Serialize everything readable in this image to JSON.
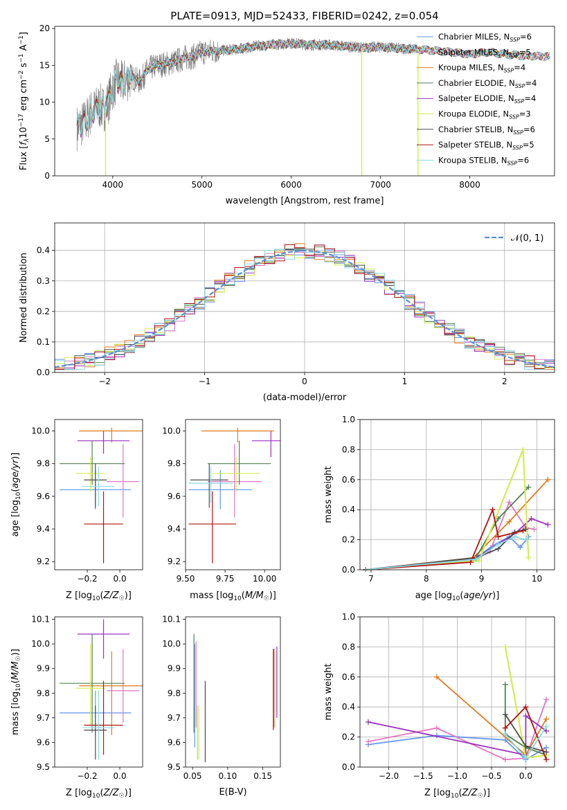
{
  "figure": {
    "title": "PLATE=0913, MJD=52433, FIBERID=0242, z=0.054"
  },
  "colors": {
    "observed": "#808080",
    "model": [
      "#6495ed",
      "#e377c2",
      "#e07b20",
      "#4f7f4f",
      "#9b30c0",
      "#d4ec50",
      "#4a4a4a",
      "#b01010",
      "#8ad8e0"
    ]
  },
  "chart_data": [
    {
      "type": "line",
      "panel": "spectrum",
      "xlabel": "wavelength [Angstrom, rest frame]",
      "ylabel": "Flux [f_λ 10^-17 erg cm^-2 s^-1 A^-1]",
      "xlim": [
        3350,
        8950
      ],
      "ylim": [
        0,
        20.3
      ],
      "xticks": [
        4000,
        5000,
        6000,
        7000,
        8000
      ],
      "yticks": [
        0,
        5,
        10,
        15,
        20
      ],
      "legend_position": "right",
      "legend": [
        {
          "name": "Chabrier MILES, N_SSP=6",
          "label": "Chabrier MILES, N",
          "nssp": "=6"
        },
        {
          "name": "Salpeter MILES, N_SSP=5",
          "label": "Salpeter MILES, N",
          "nssp": "=5"
        },
        {
          "name": "Kroupa MILES, N_SSP=4",
          "label": "Kroupa MILES, N",
          "nssp": "=4"
        },
        {
          "name": "Chabrier ELODIE, N_SSP=4",
          "label": "Chabrier ELODIE, N",
          "nssp": "=4"
        },
        {
          "name": "Salpeter ELODIE, N_SSP=4",
          "label": "Salpeter ELODIE, N",
          "nssp": "=4"
        },
        {
          "name": "Kroupa ELODIE, N_SSP=3",
          "label": "Kroupa ELODIE, N",
          "nssp": "=3"
        },
        {
          "name": "Chabrier STELIB, N_SSP=6",
          "label": "Chabrier STELIB, N",
          "nssp": "=6"
        },
        {
          "name": "Salpeter STELIB, N_SSP=5",
          "label": "Salpeter STELIB, N",
          "nssp": "=5"
        },
        {
          "name": "Kroupa STELIB, N_SSP=6",
          "label": "Kroupa STELIB, N",
          "nssp": "=6"
        }
      ],
      "continuum": {
        "x": [
          3600,
          3650,
          3700,
          3750,
          3800,
          3850,
          3900,
          3950,
          4000,
          4050,
          4100,
          4200,
          4300,
          4400,
          4500,
          4600,
          4700,
          4800,
          4900,
          5000,
          5200,
          5400,
          5600,
          5800,
          6000,
          6200,
          6400,
          6600,
          6800,
          7000,
          7200,
          7400,
          7600,
          7800,
          8000,
          8200,
          8400,
          8600,
          8900
        ],
        "y": [
          6.5,
          7.0,
          7.5,
          8.5,
          9.0,
          9.5,
          9.0,
          10.0,
          12.0,
          13.0,
          12.5,
          13.5,
          12.8,
          14.5,
          15.0,
          15.2,
          15.5,
          16.0,
          16.2,
          16.8,
          17.0,
          17.2,
          17.6,
          17.8,
          18.0,
          17.8,
          17.8,
          17.6,
          17.4,
          17.5,
          17.3,
          17.2,
          17.0,
          16.8,
          16.5,
          16.8,
          16.5,
          16.3,
          16.2
        ]
      },
      "data_end_x": 7420,
      "model_end_x": 8900,
      "spikes": [
        {
          "x": 3920,
          "y": 0
        },
        {
          "x": 6790,
          "y": 0
        },
        {
          "x": 7420,
          "y": 0
        }
      ]
    },
    {
      "type": "line",
      "panel": "residuals",
      "xlabel": "(data-model)/error",
      "ylabel": "Normed distribution",
      "xlim": [
        -2.5,
        2.5
      ],
      "ylim": [
        0,
        0.49
      ],
      "xticks": [
        -2,
        -1,
        0,
        1,
        2
      ],
      "yticks": [
        0.0,
        0.1,
        0.2,
        0.3,
        0.4
      ],
      "grid": true,
      "legend_position": "top-right",
      "legend": [
        "𝒩(0, 1)"
      ],
      "gaussian": {
        "mean": 0,
        "sigma": 1
      },
      "bin_width": 0.1
    },
    {
      "type": "scatter",
      "panel": "age_vs_Z",
      "xlabel": "Z [log10(Z/Z☉)]",
      "ylabel": "age [log10(age/yr)]",
      "xlim": [
        -0.4,
        0.14
      ],
      "ylim": [
        9.15,
        10.07
      ],
      "xticks": [
        -0.2,
        0.0
      ],
      "yticks": [
        9.2,
        9.4,
        9.6,
        9.8,
        10.0
      ],
      "points": [
        {
          "x": -0.15,
          "y": 9.64,
          "xerr": 0.22,
          "yerr_low": 0.12,
          "yerr_high": 0.12
        },
        {
          "x": 0.02,
          "y": 9.69,
          "xerr": 0.1,
          "yerr_low": 0.22,
          "yerr_high": 0.23
        },
        {
          "x": -0.05,
          "y": 10.0,
          "xerr": 0.2,
          "yerr_low": 0.07,
          "yerr_high": 0.02
        },
        {
          "x": -0.17,
          "y": 9.8,
          "xerr": 0.2,
          "yerr_low": 0.13,
          "yerr_high": 0.14
        },
        {
          "x": -0.1,
          "y": 9.94,
          "xerr": 0.16,
          "yerr_low": 0.08,
          "yerr_high": 0.06
        },
        {
          "x": -0.18,
          "y": 9.74,
          "xerr": 0.09,
          "yerr_low": 0.11,
          "yerr_high": 0.1
        },
        {
          "x": -0.15,
          "y": 9.7,
          "xerr": 0.07,
          "yerr_low": 0.17,
          "yerr_high": 0.1
        },
        {
          "x": -0.1,
          "y": 9.43,
          "xerr": 0.12,
          "yerr_low": 0.24,
          "yerr_high": 0.2
        },
        {
          "x": -0.13,
          "y": 9.66,
          "xerr": 0.1,
          "yerr_low": 0.12,
          "yerr_high": 0.12
        }
      ]
    },
    {
      "type": "scatter",
      "panel": "age_vs_mass",
      "xlabel": "mass [log10(M/M☉)]",
      "ylabel": "",
      "xlim": [
        9.5,
        10.1
      ],
      "ylim": [
        9.15,
        10.07
      ],
      "xticks": [
        9.5,
        9.75,
        10.0
      ],
      "xticklabels": [
        "9.50",
        "9.75",
        "10.00"
      ],
      "yticks": [
        9.2,
        9.4,
        9.6,
        9.8,
        10.0
      ],
      "points": [
        {
          "x": 9.72,
          "y": 9.64,
          "xerr": 0.2,
          "yerr_low": 0.12,
          "yerr_high": 0.12
        },
        {
          "x": 9.81,
          "y": 9.69,
          "xerr": 0.17,
          "yerr_low": 0.22,
          "yerr_high": 0.23
        },
        {
          "x": 9.83,
          "y": 10.0,
          "xerr": 0.23,
          "yerr_low": 0.07,
          "yerr_high": 0.02
        },
        {
          "x": 9.84,
          "y": 9.8,
          "xerr": 0.2,
          "yerr_low": 0.13,
          "yerr_high": 0.14
        },
        {
          "x": 10.04,
          "y": 9.94,
          "xerr": 0.12,
          "yerr_low": 0.1,
          "yerr_high": 0.06
        },
        {
          "x": 9.82,
          "y": 9.74,
          "xerr": 0.15,
          "yerr_low": 0.11,
          "yerr_high": 0.1
        },
        {
          "x": 9.65,
          "y": 9.7,
          "xerr": 0.12,
          "yerr_low": 0.17,
          "yerr_high": 0.1
        },
        {
          "x": 9.67,
          "y": 9.43,
          "xerr": 0.15,
          "yerr_low": 0.24,
          "yerr_high": 0.2
        },
        {
          "x": 9.66,
          "y": 9.68,
          "xerr": 0.14,
          "yerr_low": 0.12,
          "yerr_high": 0.1
        }
      ]
    },
    {
      "type": "line",
      "panel": "massweight_vs_age",
      "xlabel": "age [log10(age/yr)]",
      "ylabel": "mass weight",
      "xlim": [
        6.8,
        10.32
      ],
      "ylim": [
        0,
        1.0
      ],
      "xticks": [
        7,
        8,
        9,
        10
      ],
      "yticks": [
        0.0,
        0.2,
        0.4,
        0.6,
        0.8,
        1.0
      ],
      "grid": true,
      "series": [
        {
          "x": [
            6.9,
            8.9,
            9.2,
            9.5,
            9.7,
            9.85
          ],
          "y": [
            0.0,
            0.08,
            0.16,
            0.22,
            0.15,
            0.22
          ]
        },
        {
          "x": [
            6.9,
            8.85,
            9.15,
            9.5,
            9.8,
            9.95
          ],
          "y": [
            0.0,
            0.06,
            0.12,
            0.45,
            0.28,
            0.27
          ]
        },
        {
          "x": [
            6.9,
            8.85,
            9.5,
            10.2
          ],
          "y": [
            0.0,
            0.08,
            0.32,
            0.6
          ]
        },
        {
          "x": [
            6.9,
            8.9,
            9.3,
            9.85
          ],
          "y": [
            0.0,
            0.08,
            0.34,
            0.55
          ]
        },
        {
          "x": [
            6.9,
            8.9,
            9.6,
            9.9,
            10.2
          ],
          "y": [
            0.0,
            0.08,
            0.24,
            0.34,
            0.3
          ]
        },
        {
          "x": [
            6.9,
            8.95,
            9.75,
            9.85
          ],
          "y": [
            0.0,
            0.06,
            0.8,
            0.08
          ]
        },
        {
          "x": [
            6.9,
            8.9,
            9.3,
            9.6,
            9.8
          ],
          "y": [
            0.0,
            0.08,
            0.14,
            0.25,
            0.27
          ]
        },
        {
          "x": [
            6.9,
            8.8,
            9.2,
            9.3,
            9.75
          ],
          "y": [
            0.0,
            0.05,
            0.4,
            0.22,
            0.26
          ]
        },
        {
          "x": [
            6.9,
            8.9,
            9.3,
            9.6,
            9.8
          ],
          "y": [
            0.0,
            0.07,
            0.17,
            0.22,
            0.2
          ]
        }
      ]
    },
    {
      "type": "scatter",
      "panel": "mass_vs_Z",
      "xlabel": "Z [log10(Z/Z☉)]",
      "ylabel": "mass [log10(M/M☉)]",
      "xlim": [
        -0.4,
        0.14
      ],
      "ylim": [
        9.5,
        10.11
      ],
      "xticks": [
        -0.2,
        0.0
      ],
      "yticks": [
        9.5,
        9.6,
        9.7,
        9.8,
        9.9,
        10.0,
        10.1
      ],
      "points": [
        {
          "x": -0.15,
          "y": 9.72,
          "xerr": 0.22,
          "yerr_low": 0.09,
          "yerr_high": 0.09
        },
        {
          "x": 0.02,
          "y": 9.81,
          "xerr": 0.1,
          "yerr_low": 0.13,
          "yerr_high": 0.17
        },
        {
          "x": -0.05,
          "y": 9.83,
          "xerr": 0.2,
          "yerr_low": 0.2,
          "yerr_high": 0.14
        },
        {
          "x": -0.17,
          "y": 9.84,
          "xerr": 0.2,
          "yerr_low": 0.2,
          "yerr_high": 0.2
        },
        {
          "x": -0.1,
          "y": 10.04,
          "xerr": 0.16,
          "yerr_low": 0.1,
          "yerr_high": 0.06
        },
        {
          "x": -0.18,
          "y": 9.82,
          "xerr": 0.09,
          "yerr_low": 0.15,
          "yerr_high": 0.18
        },
        {
          "x": -0.15,
          "y": 9.65,
          "xerr": 0.07,
          "yerr_low": 0.12,
          "yerr_high": 0.1
        },
        {
          "x": -0.1,
          "y": 9.67,
          "xerr": 0.12,
          "yerr_low": 0.12,
          "yerr_high": 0.18
        },
        {
          "x": -0.13,
          "y": 9.66,
          "xerr": 0.1,
          "yerr_low": 0.13,
          "yerr_high": 0.15
        }
      ]
    },
    {
      "type": "scatter",
      "panel": "mass_vs_EBV",
      "xlabel": "E(B-V)",
      "ylabel": "",
      "xlim": [
        0.04,
        0.175
      ],
      "ylim": [
        9.5,
        10.11
      ],
      "xticks": [
        0.05,
        0.1,
        0.15
      ],
      "xticklabels": [
        "0.05",
        "0.10",
        "0.15"
      ],
      "yticks": [
        9.5,
        9.6,
        9.7,
        9.8,
        9.9,
        10.0,
        10.1
      ],
      "points": [
        {
          "x": 0.053,
          "y": 9.8,
          "yerr_low": 0.22,
          "yerr_high": 0.2
        },
        {
          "x": 0.055,
          "y": 9.81,
          "yerr_low": 0.15,
          "yerr_high": 0.2
        },
        {
          "x": 0.166,
          "y": 9.81,
          "yerr_low": 0.15,
          "yerr_high": 0.17
        },
        {
          "x": 0.052,
          "y": 9.84,
          "yerr_low": 0.2,
          "yerr_high": 0.2
        },
        {
          "x": 0.17,
          "y": 9.85,
          "yerr_low": 0.15,
          "yerr_high": 0.14
        },
        {
          "x": 0.059,
          "y": 9.65,
          "yerr_low": 0.12,
          "yerr_high": 0.1
        },
        {
          "x": 0.068,
          "y": 9.67,
          "yerr_low": 0.15,
          "yerr_high": 0.18
        },
        {
          "x": 0.165,
          "y": 9.82,
          "yerr_low": 0.17,
          "yerr_high": 0.16
        },
        {
          "x": 0.057,
          "y": 9.62,
          "yerr_low": 0.09,
          "yerr_high": 0.13
        }
      ]
    },
    {
      "type": "line",
      "panel": "massweight_vs_Z",
      "xlabel": "Z [log10(Z/Z☉)]",
      "ylabel": "mass weight",
      "xlim": [
        -2.42,
        0.42
      ],
      "ylim": [
        0,
        1.0
      ],
      "xticks": [
        -2.0,
        -1.5,
        -1.0,
        -0.5,
        0.0
      ],
      "xticklabels": [
        "−2.0",
        "−1.5",
        "−1.0",
        "−0.5",
        "0.0"
      ],
      "yticks": [
        0.0,
        0.2,
        0.4,
        0.6,
        0.8,
        1.0
      ],
      "grid": true,
      "series": [
        {
          "x": [
            -2.3,
            -1.3,
            -0.3,
            0.0,
            0.3
          ],
          "y": [
            0.15,
            0.21,
            0.18,
            0.05,
            0.13
          ]
        },
        {
          "x": [
            -2.3,
            -1.3,
            -0.3,
            0.0,
            0.3
          ],
          "y": [
            0.17,
            0.26,
            0.05,
            0.06,
            0.45
          ]
        },
        {
          "x": [
            -1.3,
            0.0,
            0.3
          ],
          "y": [
            0.6,
            0.08,
            0.32
          ]
        },
        {
          "x": [
            -0.3,
            -0.3,
            0.0,
            0.3
          ],
          "y": [
            0.55,
            0.22,
            0.13,
            0.08
          ]
        },
        {
          "x": [
            -2.3,
            0.0,
            0.0,
            0.3
          ],
          "y": [
            0.3,
            0.08,
            0.34,
            0.24
          ]
        },
        {
          "x": [
            -0.3,
            0.0,
            0.3
          ],
          "y": [
            0.8,
            0.06,
            0.08
          ]
        },
        {
          "x": [
            -0.3,
            0.0,
            0.3
          ],
          "y": [
            0.35,
            0.14,
            0.1
          ]
        },
        {
          "x": [
            -0.3,
            0.0,
            0.3
          ],
          "y": [
            0.26,
            0.4,
            0.05
          ]
        },
        {
          "x": [
            -0.3,
            0.0,
            0.3
          ],
          "y": [
            0.22,
            0.06,
            0.27
          ]
        }
      ]
    }
  ]
}
